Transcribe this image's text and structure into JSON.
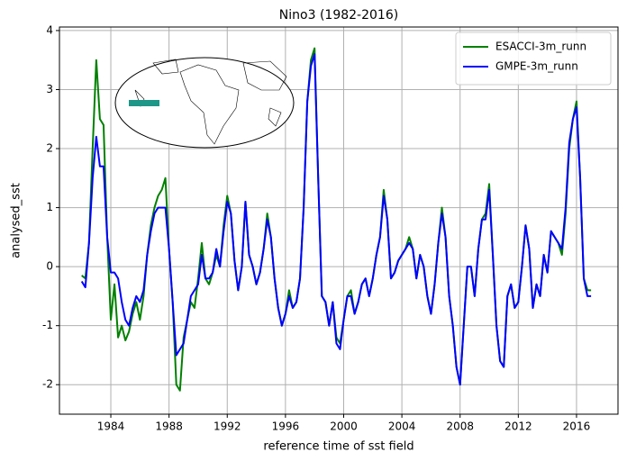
{
  "chart_data": {
    "type": "line",
    "title": "Nino3 (1982-2016)",
    "x_label": "reference time of sst field",
    "y_label": "analysed_sst",
    "x": [
      1982.0,
      1982.25,
      1982.5,
      1982.75,
      1983.0,
      1983.25,
      1983.5,
      1983.75,
      1984.0,
      1984.25,
      1984.5,
      1984.75,
      1985.0,
      1985.25,
      1985.5,
      1985.75,
      1986.0,
      1986.25,
      1986.5,
      1986.75,
      1987.0,
      1987.25,
      1987.5,
      1987.75,
      1988.0,
      1988.25,
      1988.5,
      1988.75,
      1989.0,
      1989.25,
      1989.5,
      1989.75,
      1990.0,
      1990.25,
      1990.5,
      1990.75,
      1991.0,
      1991.25,
      1991.5,
      1991.75,
      1992.0,
      1992.25,
      1992.5,
      1992.75,
      1993.0,
      1993.25,
      1993.5,
      1993.75,
      1994.0,
      1994.25,
      1994.5,
      1994.75,
      1995.0,
      1995.25,
      1995.5,
      1995.75,
      1996.0,
      1996.25,
      1996.5,
      1996.75,
      1997.0,
      1997.25,
      1997.5,
      1997.75,
      1998.0,
      1998.25,
      1998.5,
      1998.75,
      1999.0,
      1999.25,
      1999.5,
      1999.75,
      2000.0,
      2000.25,
      2000.5,
      2000.75,
      2001.0,
      2001.25,
      2001.5,
      2001.75,
      2002.0,
      2002.25,
      2002.5,
      2002.75,
      2003.0,
      2003.25,
      2003.5,
      2003.75,
      2004.0,
      2004.25,
      2004.5,
      2004.75,
      2005.0,
      2005.25,
      2005.5,
      2005.75,
      2006.0,
      2006.25,
      2006.5,
      2006.75,
      2007.0,
      2007.25,
      2007.5,
      2007.75,
      2008.0,
      2008.25,
      2008.5,
      2008.75,
      2009.0,
      2009.25,
      2009.5,
      2009.75,
      2010.0,
      2010.25,
      2010.5,
      2010.75,
      2011.0,
      2011.25,
      2011.5,
      2011.75,
      2012.0,
      2012.25,
      2012.5,
      2012.75,
      2013.0,
      2013.25,
      2013.5,
      2013.75,
      2014.0,
      2014.25,
      2014.5,
      2014.75,
      2015.0,
      2015.25,
      2015.5,
      2015.75,
      2016.0,
      2016.25,
      2016.5,
      2016.75,
      2017.0
    ],
    "series": [
      {
        "name": "ESACCI-3m_runn",
        "color": "#008000",
        "values": [
          -0.15,
          -0.2,
          0.4,
          2.0,
          3.5,
          2.5,
          2.4,
          0.5,
          -0.9,
          -0.3,
          -1.2,
          -1.0,
          -1.25,
          -1.1,
          -0.8,
          -0.6,
          -0.9,
          -0.5,
          0.2,
          0.7,
          1.0,
          1.2,
          1.3,
          1.5,
          0.3,
          -0.6,
          -2.0,
          -2.1,
          -1.2,
          -0.9,
          -0.6,
          -0.7,
          -0.2,
          0.4,
          -0.2,
          -0.3,
          -0.1,
          0.2,
          0.0,
          0.7,
          1.2,
          0.9,
          0.1,
          -0.4,
          0.0,
          1.1,
          0.2,
          0.0,
          -0.3,
          -0.1,
          0.3,
          0.9,
          0.5,
          -0.2,
          -0.7,
          -1.0,
          -0.8,
          -0.4,
          -0.7,
          -0.6,
          -0.2,
          1.0,
          2.8,
          3.5,
          3.7,
          1.5,
          -0.5,
          -0.6,
          -1.0,
          -0.6,
          -1.2,
          -1.3,
          -0.9,
          -0.5,
          -0.4,
          -0.8,
          -0.6,
          -0.3,
          -0.2,
          -0.5,
          -0.2,
          0.2,
          0.5,
          1.3,
          0.8,
          -0.2,
          -0.1,
          0.1,
          0.2,
          0.3,
          0.5,
          0.3,
          -0.2,
          0.2,
          0.0,
          -0.5,
          -0.8,
          -0.3,
          0.4,
          1.0,
          0.5,
          -0.5,
          -1.0,
          -1.7,
          -2.0,
          -1.0,
          0.0,
          0.0,
          -0.5,
          0.3,
          0.8,
          0.9,
          1.4,
          0.2,
          -1.0,
          -1.6,
          -1.7,
          -0.5,
          -0.3,
          -0.7,
          -0.6,
          0.0,
          0.7,
          0.3,
          -0.7,
          -0.3,
          -0.5,
          0.2,
          -0.1,
          0.6,
          0.5,
          0.4,
          0.2,
          0.9,
          2.0,
          2.5,
          2.8,
          1.5,
          -0.2,
          -0.4,
          -0.4
        ]
      },
      {
        "name": "GMPE-3m_runn",
        "color": "#0000ff",
        "values": [
          -0.25,
          -0.35,
          0.4,
          1.5,
          2.2,
          1.7,
          1.7,
          0.5,
          -0.1,
          -0.1,
          -0.2,
          -0.6,
          -0.9,
          -1.0,
          -0.7,
          -0.5,
          -0.6,
          -0.4,
          0.2,
          0.6,
          0.9,
          1.0,
          1.0,
          1.0,
          0.3,
          -0.6,
          -1.5,
          -1.4,
          -1.3,
          -0.9,
          -0.5,
          -0.4,
          -0.3,
          0.2,
          -0.2,
          -0.2,
          -0.1,
          0.3,
          0.0,
          0.6,
          1.1,
          0.9,
          0.1,
          -0.4,
          0.0,
          1.1,
          0.2,
          0.0,
          -0.3,
          -0.1,
          0.3,
          0.8,
          0.5,
          -0.2,
          -0.7,
          -1.0,
          -0.8,
          -0.5,
          -0.7,
          -0.6,
          -0.2,
          1.0,
          2.8,
          3.4,
          3.6,
          1.5,
          -0.5,
          -0.6,
          -1.0,
          -0.6,
          -1.3,
          -1.4,
          -0.9,
          -0.5,
          -0.5,
          -0.8,
          -0.6,
          -0.3,
          -0.2,
          -0.5,
          -0.2,
          0.2,
          0.5,
          1.2,
          0.8,
          -0.2,
          -0.1,
          0.1,
          0.2,
          0.3,
          0.4,
          0.3,
          -0.2,
          0.2,
          0.0,
          -0.5,
          -0.8,
          -0.3,
          0.4,
          0.9,
          0.5,
          -0.5,
          -1.0,
          -1.7,
          -2.0,
          -1.0,
          0.0,
          0.0,
          -0.5,
          0.3,
          0.8,
          0.8,
          1.3,
          0.2,
          -1.0,
          -1.6,
          -1.7,
          -0.5,
          -0.3,
          -0.7,
          -0.6,
          0.0,
          0.7,
          0.3,
          -0.7,
          -0.3,
          -0.5,
          0.2,
          -0.1,
          0.6,
          0.5,
          0.4,
          0.3,
          1.0,
          2.1,
          2.5,
          2.7,
          1.5,
          -0.2,
          -0.5,
          -0.5
        ]
      }
    ],
    "xlim": [
      1980.47,
      2018.85
    ],
    "ylim": [
      -2.5,
      4.06
    ],
    "xticks": [
      1984,
      1988,
      1992,
      1996,
      2000,
      2004,
      2008,
      2012,
      2016
    ],
    "yticks": [
      -2,
      -1,
      0,
      1,
      2,
      3,
      4
    ],
    "grid": true,
    "legend": "upper right"
  }
}
